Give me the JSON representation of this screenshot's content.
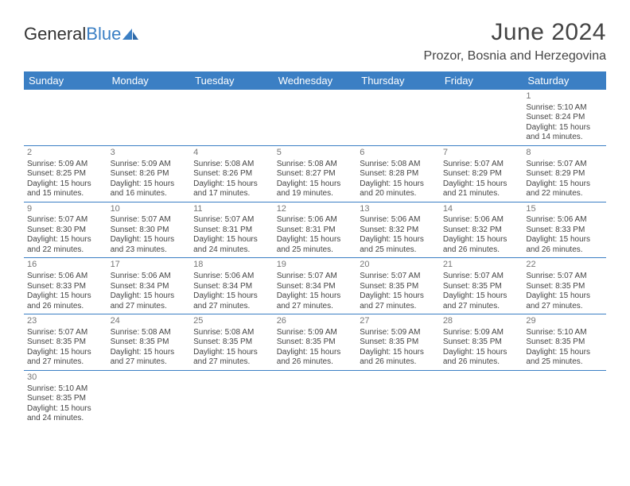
{
  "brand": {
    "part1": "General",
    "part2": "Blue"
  },
  "title": "June 2024",
  "location": "Prozor, Bosnia and Herzegovina",
  "calendar": {
    "header_bg": "#3b7fc4",
    "header_fg": "#ffffff",
    "grid_line": "#3b7fc4",
    "columns": [
      "Sunday",
      "Monday",
      "Tuesday",
      "Wednesday",
      "Thursday",
      "Friday",
      "Saturday"
    ],
    "weeks": [
      [
        null,
        null,
        null,
        null,
        null,
        null,
        {
          "n": "1",
          "sunrise": "Sunrise: 5:10 AM",
          "sunset": "Sunset: 8:24 PM",
          "d1": "Daylight: 15 hours",
          "d2": "and 14 minutes."
        }
      ],
      [
        {
          "n": "2",
          "sunrise": "Sunrise: 5:09 AM",
          "sunset": "Sunset: 8:25 PM",
          "d1": "Daylight: 15 hours",
          "d2": "and 15 minutes."
        },
        {
          "n": "3",
          "sunrise": "Sunrise: 5:09 AM",
          "sunset": "Sunset: 8:26 PM",
          "d1": "Daylight: 15 hours",
          "d2": "and 16 minutes."
        },
        {
          "n": "4",
          "sunrise": "Sunrise: 5:08 AM",
          "sunset": "Sunset: 8:26 PM",
          "d1": "Daylight: 15 hours",
          "d2": "and 17 minutes."
        },
        {
          "n": "5",
          "sunrise": "Sunrise: 5:08 AM",
          "sunset": "Sunset: 8:27 PM",
          "d1": "Daylight: 15 hours",
          "d2": "and 19 minutes."
        },
        {
          "n": "6",
          "sunrise": "Sunrise: 5:08 AM",
          "sunset": "Sunset: 8:28 PM",
          "d1": "Daylight: 15 hours",
          "d2": "and 20 minutes."
        },
        {
          "n": "7",
          "sunrise": "Sunrise: 5:07 AM",
          "sunset": "Sunset: 8:29 PM",
          "d1": "Daylight: 15 hours",
          "d2": "and 21 minutes."
        },
        {
          "n": "8",
          "sunrise": "Sunrise: 5:07 AM",
          "sunset": "Sunset: 8:29 PM",
          "d1": "Daylight: 15 hours",
          "d2": "and 22 minutes."
        }
      ],
      [
        {
          "n": "9",
          "sunrise": "Sunrise: 5:07 AM",
          "sunset": "Sunset: 8:30 PM",
          "d1": "Daylight: 15 hours",
          "d2": "and 22 minutes."
        },
        {
          "n": "10",
          "sunrise": "Sunrise: 5:07 AM",
          "sunset": "Sunset: 8:30 PM",
          "d1": "Daylight: 15 hours",
          "d2": "and 23 minutes."
        },
        {
          "n": "11",
          "sunrise": "Sunrise: 5:07 AM",
          "sunset": "Sunset: 8:31 PM",
          "d1": "Daylight: 15 hours",
          "d2": "and 24 minutes."
        },
        {
          "n": "12",
          "sunrise": "Sunrise: 5:06 AM",
          "sunset": "Sunset: 8:31 PM",
          "d1": "Daylight: 15 hours",
          "d2": "and 25 minutes."
        },
        {
          "n": "13",
          "sunrise": "Sunrise: 5:06 AM",
          "sunset": "Sunset: 8:32 PM",
          "d1": "Daylight: 15 hours",
          "d2": "and 25 minutes."
        },
        {
          "n": "14",
          "sunrise": "Sunrise: 5:06 AM",
          "sunset": "Sunset: 8:32 PM",
          "d1": "Daylight: 15 hours",
          "d2": "and 26 minutes."
        },
        {
          "n": "15",
          "sunrise": "Sunrise: 5:06 AM",
          "sunset": "Sunset: 8:33 PM",
          "d1": "Daylight: 15 hours",
          "d2": "and 26 minutes."
        }
      ],
      [
        {
          "n": "16",
          "sunrise": "Sunrise: 5:06 AM",
          "sunset": "Sunset: 8:33 PM",
          "d1": "Daylight: 15 hours",
          "d2": "and 26 minutes."
        },
        {
          "n": "17",
          "sunrise": "Sunrise: 5:06 AM",
          "sunset": "Sunset: 8:34 PM",
          "d1": "Daylight: 15 hours",
          "d2": "and 27 minutes."
        },
        {
          "n": "18",
          "sunrise": "Sunrise: 5:06 AM",
          "sunset": "Sunset: 8:34 PM",
          "d1": "Daylight: 15 hours",
          "d2": "and 27 minutes."
        },
        {
          "n": "19",
          "sunrise": "Sunrise: 5:07 AM",
          "sunset": "Sunset: 8:34 PM",
          "d1": "Daylight: 15 hours",
          "d2": "and 27 minutes."
        },
        {
          "n": "20",
          "sunrise": "Sunrise: 5:07 AM",
          "sunset": "Sunset: 8:35 PM",
          "d1": "Daylight: 15 hours",
          "d2": "and 27 minutes."
        },
        {
          "n": "21",
          "sunrise": "Sunrise: 5:07 AM",
          "sunset": "Sunset: 8:35 PM",
          "d1": "Daylight: 15 hours",
          "d2": "and 27 minutes."
        },
        {
          "n": "22",
          "sunrise": "Sunrise: 5:07 AM",
          "sunset": "Sunset: 8:35 PM",
          "d1": "Daylight: 15 hours",
          "d2": "and 27 minutes."
        }
      ],
      [
        {
          "n": "23",
          "sunrise": "Sunrise: 5:07 AM",
          "sunset": "Sunset: 8:35 PM",
          "d1": "Daylight: 15 hours",
          "d2": "and 27 minutes."
        },
        {
          "n": "24",
          "sunrise": "Sunrise: 5:08 AM",
          "sunset": "Sunset: 8:35 PM",
          "d1": "Daylight: 15 hours",
          "d2": "and 27 minutes."
        },
        {
          "n": "25",
          "sunrise": "Sunrise: 5:08 AM",
          "sunset": "Sunset: 8:35 PM",
          "d1": "Daylight: 15 hours",
          "d2": "and 27 minutes."
        },
        {
          "n": "26",
          "sunrise": "Sunrise: 5:09 AM",
          "sunset": "Sunset: 8:35 PM",
          "d1": "Daylight: 15 hours",
          "d2": "and 26 minutes."
        },
        {
          "n": "27",
          "sunrise": "Sunrise: 5:09 AM",
          "sunset": "Sunset: 8:35 PM",
          "d1": "Daylight: 15 hours",
          "d2": "and 26 minutes."
        },
        {
          "n": "28",
          "sunrise": "Sunrise: 5:09 AM",
          "sunset": "Sunset: 8:35 PM",
          "d1": "Daylight: 15 hours",
          "d2": "and 26 minutes."
        },
        {
          "n": "29",
          "sunrise": "Sunrise: 5:10 AM",
          "sunset": "Sunset: 8:35 PM",
          "d1": "Daylight: 15 hours",
          "d2": "and 25 minutes."
        }
      ],
      [
        {
          "n": "30",
          "sunrise": "Sunrise: 5:10 AM",
          "sunset": "Sunset: 8:35 PM",
          "d1": "Daylight: 15 hours",
          "d2": "and 24 minutes."
        },
        null,
        null,
        null,
        null,
        null,
        null
      ]
    ]
  }
}
